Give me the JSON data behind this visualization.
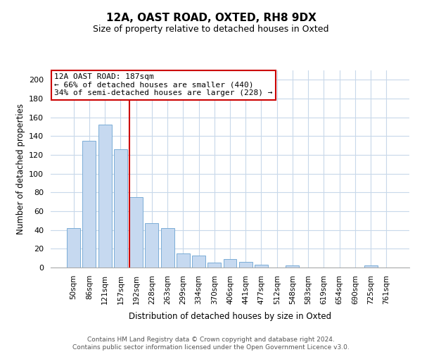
{
  "title": "12A, OAST ROAD, OXTED, RH8 9DX",
  "subtitle": "Size of property relative to detached houses in Oxted",
  "xlabel": "Distribution of detached houses by size in Oxted",
  "ylabel": "Number of detached properties",
  "footer_line1": "Contains HM Land Registry data © Crown copyright and database right 2024.",
  "footer_line2": "Contains public sector information licensed under the Open Government Licence v3.0.",
  "bar_labels": [
    "50sqm",
    "86sqm",
    "121sqm",
    "157sqm",
    "192sqm",
    "228sqm",
    "263sqm",
    "299sqm",
    "334sqm",
    "370sqm",
    "406sqm",
    "441sqm",
    "477sqm",
    "512sqm",
    "548sqm",
    "583sqm",
    "619sqm",
    "654sqm",
    "690sqm",
    "725sqm",
    "761sqm"
  ],
  "bar_values": [
    42,
    135,
    152,
    126,
    75,
    47,
    42,
    15,
    13,
    5,
    9,
    6,
    3,
    0,
    2,
    0,
    0,
    0,
    0,
    2,
    0
  ],
  "bar_color": "#c6d9f0",
  "bar_edge_color": "#7badd6",
  "property_line_index": 4,
  "property_line_color": "#cc0000",
  "annotation_title": "12A OAST ROAD: 187sqm",
  "annotation_line1": "← 66% of detached houses are smaller (440)",
  "annotation_line2": "34% of semi-detached houses are larger (228) →",
  "annotation_box_color": "#ffffff",
  "annotation_box_edge_color": "#cc0000",
  "ylim": [
    0,
    210
  ],
  "yticks": [
    0,
    20,
    40,
    60,
    80,
    100,
    120,
    140,
    160,
    180,
    200
  ],
  "grid_color": "#c8d8ea",
  "background_color": "#ffffff"
}
